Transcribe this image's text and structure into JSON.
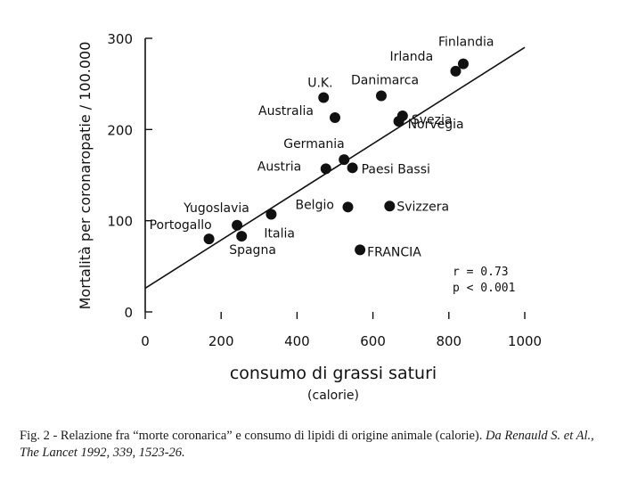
{
  "chart_data": {
    "type": "scatter",
    "xlabel": "consumo di grassi saturi",
    "xunit": "(calorie)",
    "ylabel": "Mortalità per coronaropatie / 100.000",
    "xlim": [
      0,
      1000
    ],
    "ylim": [
      0,
      300
    ],
    "xticks": [
      0,
      200,
      400,
      600,
      800,
      1000
    ],
    "yticks": [
      0,
      100,
      200,
      300
    ],
    "grid": false,
    "points": [
      {
        "label": "Finlandia",
        "x": 838,
        "y": 272
      },
      {
        "label": "Irlanda",
        "x": 818,
        "y": 264
      },
      {
        "label": "U.K.",
        "x": 470,
        "y": 235
      },
      {
        "label": "Danimarca",
        "x": 622,
        "y": 237
      },
      {
        "label": "Australia",
        "x": 500,
        "y": 213
      },
      {
        "label": "Svezia",
        "x": 678,
        "y": 215
      },
      {
        "label": "Norvegia",
        "x": 668,
        "y": 209
      },
      {
        "label": "Germania",
        "x": 524,
        "y": 167
      },
      {
        "label": "Austria",
        "x": 476,
        "y": 157
      },
      {
        "label": "Paesi Bassi",
        "x": 546,
        "y": 158
      },
      {
        "label": "Yugoslavia",
        "x": 242,
        "y": 95
      },
      {
        "label": "Portogallo",
        "x": 168,
        "y": 80
      },
      {
        "label": "Italia",
        "x": 332,
        "y": 107
      },
      {
        "label": "Spagna",
        "x": 254,
        "y": 83
      },
      {
        "label": "Belgio",
        "x": 534,
        "y": 115
      },
      {
        "label": "Svizzera",
        "x": 644,
        "y": 116
      },
      {
        "label": "FRANCIA",
        "x": 566,
        "y": 68
      }
    ],
    "regression": {
      "x": [
        0,
        1000
      ],
      "y": [
        26,
        290
      ]
    },
    "annotations": [
      "r = 0.73",
      "p < 0.001"
    ]
  },
  "caption": {
    "text": "Fig. 2 - Relazione fra “morte coronarica” e consumo di lipidi di origine animale (calorie). ",
    "source_italic": "Da Renauld S. et Al., The Lancet 1992, 339, 1523-26."
  }
}
